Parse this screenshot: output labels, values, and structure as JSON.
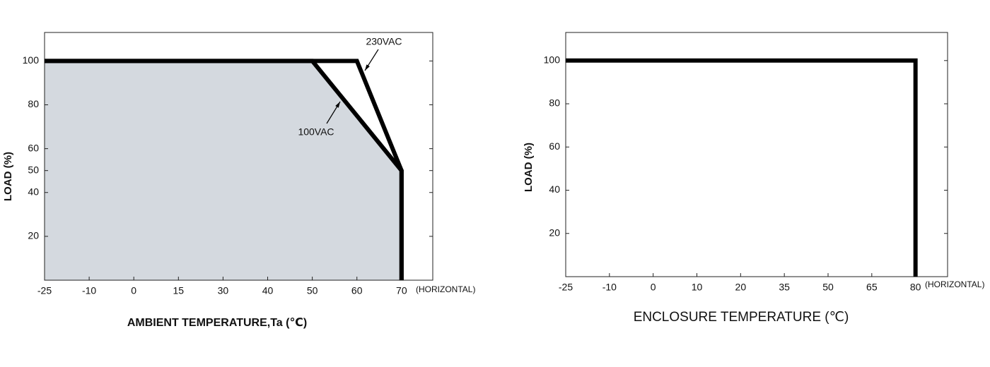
{
  "chart_data": [
    {
      "type": "line",
      "x_label": "AMBIENT TEMPERATURE,Ta (℃)",
      "y_label": "LOAD (%)",
      "annotation": "(HORIZONTAL)",
      "xticks": [
        -25,
        -10,
        0,
        15,
        30,
        40,
        50,
        60,
        70
      ],
      "xlim": [
        -25,
        77
      ],
      "yticks": [
        20,
        40,
        50,
        60,
        80,
        100
      ],
      "ylim": [
        0,
        113
      ],
      "series": [
        {
          "name": "230VAC",
          "color": "#000000",
          "x": [
            -25,
            60,
            70,
            70
          ],
          "values": [
            100,
            100,
            50,
            0
          ]
        },
        {
          "name": "100VAC",
          "color": "#000000",
          "fill": "#d4d9df",
          "x": [
            -25,
            50,
            70,
            70
          ],
          "values": [
            100,
            100,
            50,
            0
          ]
        }
      ]
    },
    {
      "type": "line",
      "x_label": "ENCLOSURE TEMPERATURE (℃)",
      "y_label": "LOAD (%)",
      "annotation": "(HORIZONTAL)",
      "xticks": [
        -25,
        -10,
        0,
        10,
        20,
        35,
        50,
        65,
        80
      ],
      "xlim": [
        -25,
        91
      ],
      "yticks": [
        20,
        40,
        60,
        80,
        100
      ],
      "ylim": [
        0,
        113
      ],
      "series": [
        {
          "color": "#000000",
          "x": [
            -25,
            80,
            80
          ],
          "values": [
            100,
            100,
            0
          ]
        }
      ]
    }
  ]
}
